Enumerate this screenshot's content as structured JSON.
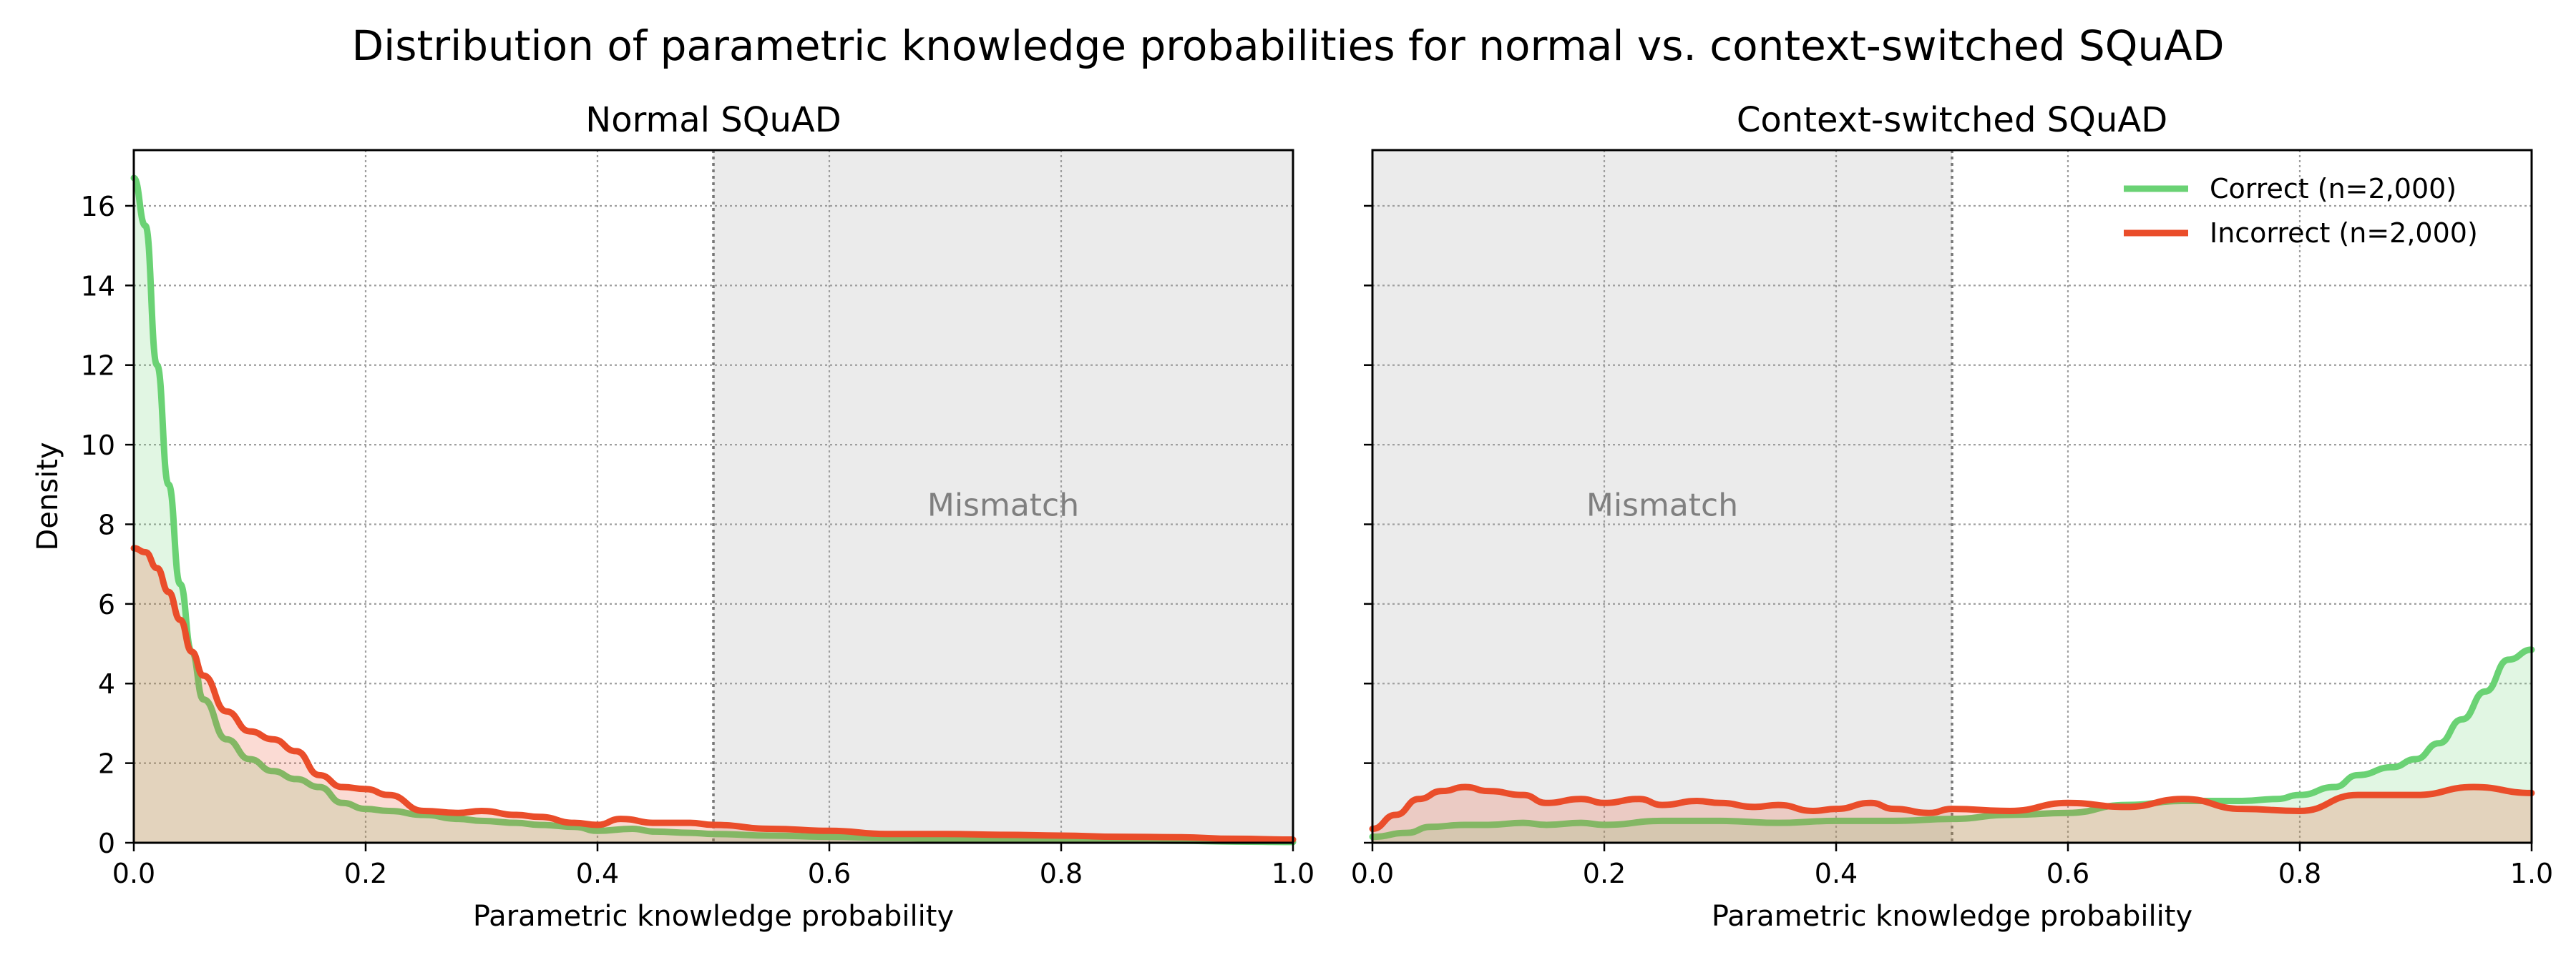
{
  "suptitle": "Distribution of parametric knowledge probabilities for normal vs. context-switched SQuAD",
  "colors": {
    "correct": "#6ad274",
    "incorrect": "#ea4d2a",
    "region": "#ebebeb",
    "region_text": "#7f7f7f",
    "grid": "#9e9e9e"
  },
  "legend": {
    "placement": "top-right",
    "panel": 1,
    "entries": [
      "Correct (n=2,000)",
      "Incorrect (n=2,000)"
    ]
  },
  "chart_data": [
    {
      "type": "area",
      "title": "Normal SQuAD",
      "xlabel": "Parametric knowledge probability",
      "ylabel": "Density",
      "xlim": [
        0,
        1
      ],
      "ylim": [
        0,
        17.4
      ],
      "xticks": [
        "0.0",
        "0.2",
        "0.4",
        "0.6",
        "0.8",
        "1.0"
      ],
      "yticks": [
        "0",
        "2",
        "4",
        "6",
        "8",
        "10",
        "12",
        "14",
        "16"
      ],
      "grid": true,
      "threshold": 0.5,
      "region": {
        "from": 0.5,
        "to": 1.0,
        "label": "Mismatch"
      },
      "series": [
        {
          "name": "Correct (n=2,000)",
          "x": [
            0,
            0.01,
            0.02,
            0.03,
            0.04,
            0.05,
            0.06,
            0.08,
            0.1,
            0.12,
            0.14,
            0.16,
            0.18,
            0.2,
            0.22,
            0.25,
            0.28,
            0.3,
            0.33,
            0.35,
            0.38,
            0.4,
            0.43,
            0.45,
            0.48,
            0.5,
            0.55,
            0.6,
            0.65,
            0.7,
            0.75,
            0.8,
            0.85,
            0.9,
            0.95,
            1.0
          ],
          "values": [
            16.7,
            15.5,
            12.0,
            9.0,
            6.5,
            4.8,
            3.6,
            2.6,
            2.1,
            1.8,
            1.6,
            1.4,
            1.0,
            0.85,
            0.8,
            0.7,
            0.6,
            0.55,
            0.5,
            0.45,
            0.4,
            0.3,
            0.35,
            0.28,
            0.25,
            0.22,
            0.18,
            0.15,
            0.12,
            0.1,
            0.1,
            0.08,
            0.06,
            0.05,
            0.03,
            0.02
          ]
        },
        {
          "name": "Incorrect (n=2,000)",
          "x": [
            0,
            0.01,
            0.02,
            0.03,
            0.04,
            0.05,
            0.06,
            0.08,
            0.1,
            0.12,
            0.14,
            0.16,
            0.18,
            0.2,
            0.22,
            0.25,
            0.28,
            0.3,
            0.33,
            0.35,
            0.38,
            0.4,
            0.42,
            0.45,
            0.48,
            0.5,
            0.55,
            0.6,
            0.65,
            0.7,
            0.75,
            0.8,
            0.85,
            0.9,
            0.95,
            1.0
          ],
          "values": [
            7.4,
            7.3,
            6.9,
            6.3,
            5.6,
            4.8,
            4.2,
            3.3,
            2.8,
            2.6,
            2.3,
            1.7,
            1.4,
            1.35,
            1.2,
            0.8,
            0.75,
            0.8,
            0.7,
            0.65,
            0.5,
            0.45,
            0.6,
            0.5,
            0.5,
            0.45,
            0.35,
            0.3,
            0.22,
            0.22,
            0.2,
            0.18,
            0.15,
            0.14,
            0.1,
            0.08
          ]
        }
      ]
    },
    {
      "type": "area",
      "title": "Context-switched SQuAD",
      "xlabel": "Parametric knowledge probability",
      "ylim": [
        0,
        17.4
      ],
      "xlim": [
        0,
        1
      ],
      "xticks": [
        "0.0",
        "0.2",
        "0.4",
        "0.6",
        "0.8",
        "1.0"
      ],
      "grid": true,
      "threshold": 0.5,
      "region": {
        "from": 0.0,
        "to": 0.5,
        "label": "Mismatch"
      },
      "series": [
        {
          "name": "Correct (n=2,000)",
          "x": [
            0,
            0.03,
            0.05,
            0.08,
            0.1,
            0.13,
            0.15,
            0.18,
            0.2,
            0.25,
            0.3,
            0.35,
            0.4,
            0.45,
            0.5,
            0.55,
            0.6,
            0.65,
            0.7,
            0.75,
            0.78,
            0.8,
            0.83,
            0.85,
            0.88,
            0.9,
            0.92,
            0.94,
            0.96,
            0.98,
            1.0
          ],
          "values": [
            0.15,
            0.25,
            0.4,
            0.45,
            0.45,
            0.5,
            0.45,
            0.5,
            0.45,
            0.55,
            0.55,
            0.5,
            0.55,
            0.55,
            0.6,
            0.7,
            0.75,
            0.95,
            1.05,
            1.05,
            1.1,
            1.2,
            1.4,
            1.7,
            1.9,
            2.1,
            2.5,
            3.1,
            3.8,
            4.6,
            4.85
          ]
        },
        {
          "name": "Incorrect (n=2,000)",
          "x": [
            0,
            0.02,
            0.04,
            0.06,
            0.08,
            0.1,
            0.13,
            0.15,
            0.18,
            0.2,
            0.23,
            0.25,
            0.28,
            0.3,
            0.33,
            0.35,
            0.38,
            0.4,
            0.43,
            0.45,
            0.48,
            0.5,
            0.55,
            0.6,
            0.65,
            0.7,
            0.75,
            0.8,
            0.85,
            0.9,
            0.95,
            1.0
          ],
          "values": [
            0.35,
            0.7,
            1.1,
            1.3,
            1.4,
            1.3,
            1.2,
            1.0,
            1.1,
            1.0,
            1.1,
            0.95,
            1.05,
            1.0,
            0.9,
            0.95,
            0.8,
            0.85,
            1.0,
            0.85,
            0.75,
            0.85,
            0.8,
            1.0,
            0.9,
            1.1,
            0.85,
            0.8,
            1.2,
            1.2,
            1.4,
            1.25
          ]
        }
      ]
    }
  ]
}
